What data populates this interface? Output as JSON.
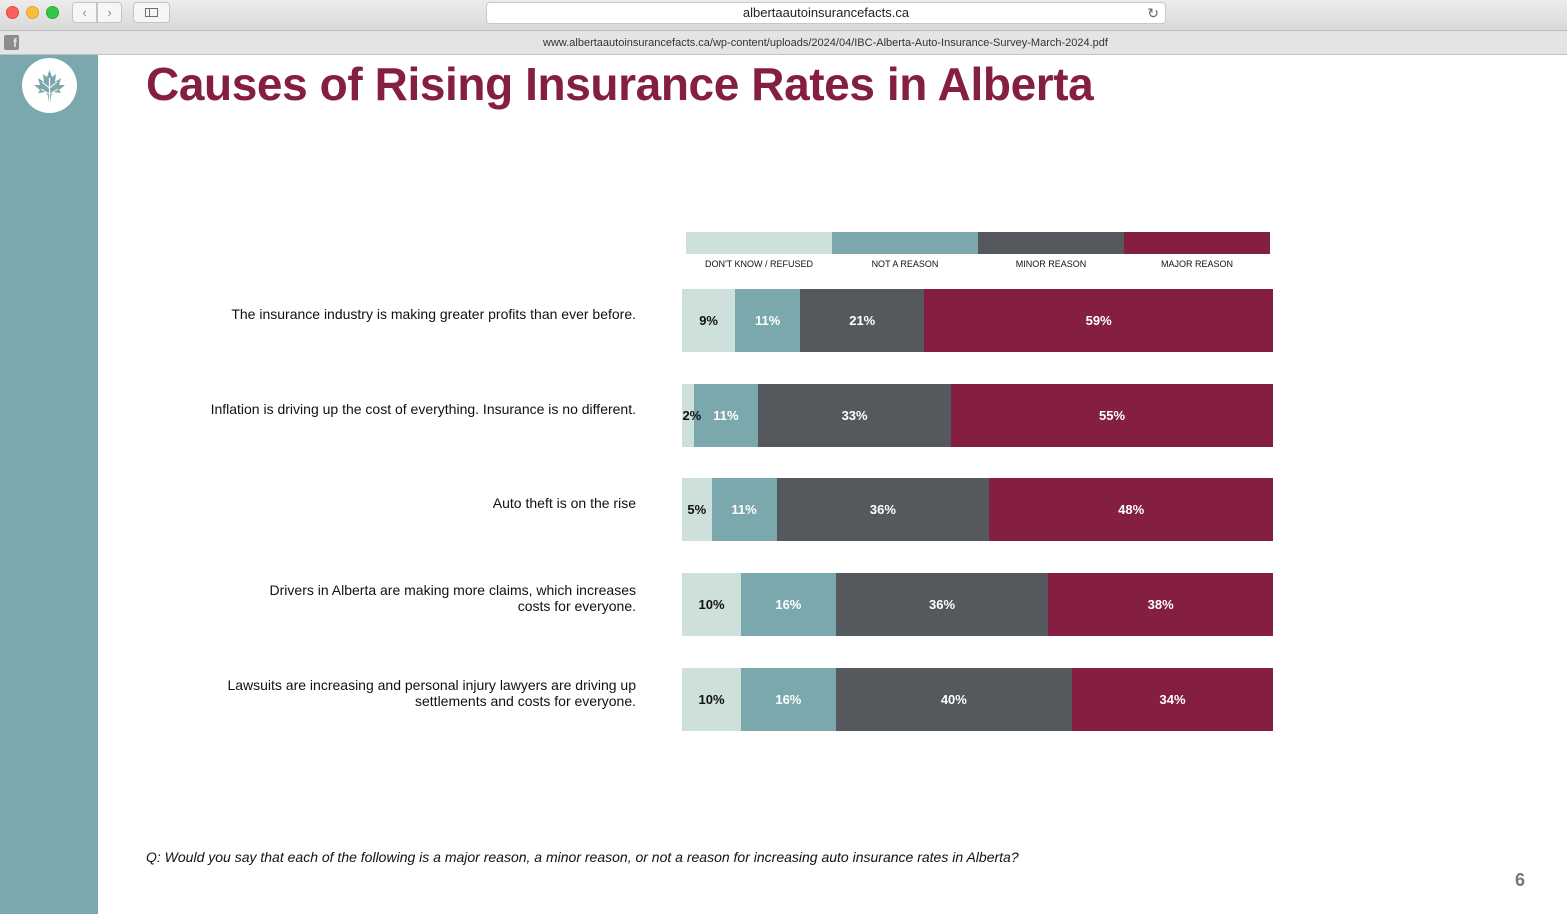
{
  "browser": {
    "url_domain": "albertaautoinsurancefacts.ca",
    "pdf_url": "www.albertaautoinsurancefacts.ca/wp-content/uploads/2024/04/IBC-Alberta-Auto-Insurance-Survey-March-2024.pdf",
    "back_icon": "chevron-left-icon",
    "forward_icon": "chevron-right-icon",
    "reload_icon": "reload-icon"
  },
  "slide": {
    "title": "Causes of Rising Insurance Rates in Alberta",
    "question": "Q: Would you say that each of the following is a major reason, a minor reason, or not a reason for increasing auto insurance  rates in Alberta?",
    "page_number": "6",
    "accent_color": "#851f42",
    "sidebar_color": "#7ba8ad"
  },
  "chart_data": {
    "type": "bar",
    "orientation": "horizontal",
    "stacked": true,
    "unit": "%",
    "legend_position": "top",
    "categories": [
      "The insurance industry is making greater profits than ever before.",
      "Inflation is driving up the cost of everything. Insurance is no different.",
      "Auto theft is on the rise",
      "Drivers in Alberta are making more claims, which increases\ncosts for everyone.",
      "Lawsuits are increasing and personal injury lawyers are driving up\nsettlements and costs for everyone."
    ],
    "series": [
      {
        "name": "DON'T KNOW / REFUSED",
        "color": "#cde0db",
        "values": [
          9,
          2,
          5,
          10,
          10
        ]
      },
      {
        "name": "NOT A REASON",
        "color": "#7ba8ad",
        "values": [
          11,
          11,
          11,
          16,
          16
        ]
      },
      {
        "name": "MINOR REASON",
        "color": "#55585d",
        "values": [
          21,
          33,
          36,
          36,
          40
        ]
      },
      {
        "name": "MAJOR REASON",
        "color": "#851f42",
        "values": [
          59,
          55,
          48,
          38,
          34
        ]
      }
    ],
    "data_labels": [
      [
        "9%",
        "11%",
        "21%",
        "59%"
      ],
      [
        "2%",
        "11%",
        "33%",
        "55%"
      ],
      [
        "5%",
        "11%",
        "36%",
        "48%"
      ],
      [
        "10%",
        "16%",
        "36%",
        "38%"
      ],
      [
        "10%",
        "16%",
        "40%",
        "34%"
      ]
    ]
  }
}
